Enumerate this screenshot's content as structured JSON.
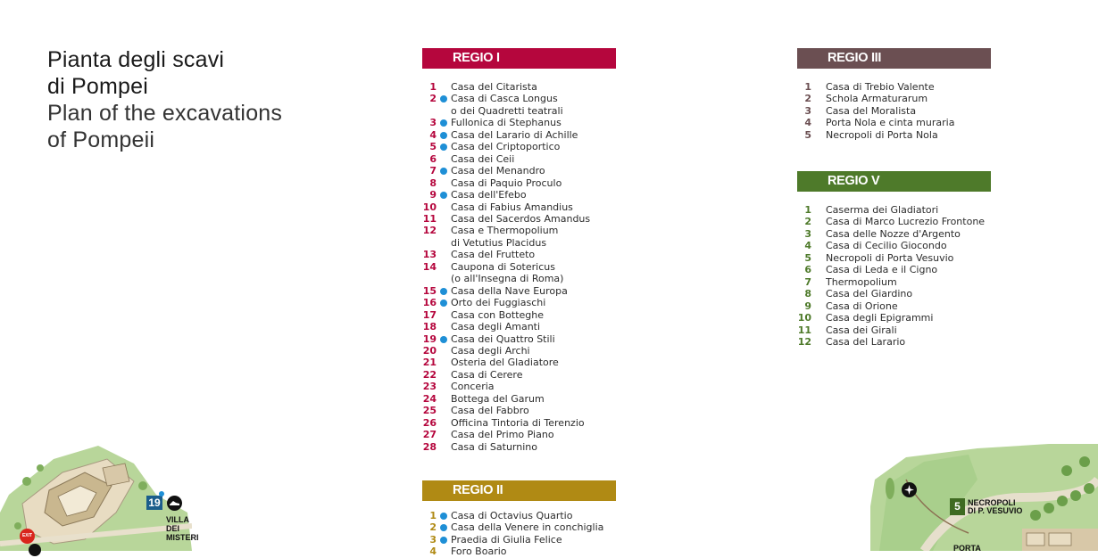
{
  "title": {
    "it_line1": "Pianta degli scavi",
    "it_line2": "di Pompei",
    "en_line1": "Plan of the excavations",
    "en_line2": "of Pompeii"
  },
  "colors": {
    "regio1": "#b5063d",
    "regio2": "#b08a14",
    "regio3": "#6b4f52",
    "regio5": "#4e7a2a",
    "dot": "#1e8fd6"
  },
  "regio1": {
    "title": "REGIO I",
    "items": [
      {
        "num": "1",
        "dot": false,
        "lines": [
          "Casa del Citarista"
        ]
      },
      {
        "num": "2",
        "dot": true,
        "lines": [
          "Casa di Casca Longus",
          "o dei Quadretti teatrali"
        ]
      },
      {
        "num": "3",
        "dot": true,
        "lines": [
          "Fullonica di Stephanus"
        ]
      },
      {
        "num": "4",
        "dot": true,
        "lines": [
          "Casa del Larario di Achille"
        ]
      },
      {
        "num": "5",
        "dot": true,
        "lines": [
          "Casa del Criptoportico"
        ]
      },
      {
        "num": "6",
        "dot": false,
        "lines": [
          "Casa dei Ceii"
        ]
      },
      {
        "num": "7",
        "dot": true,
        "lines": [
          "Casa del Menandro"
        ]
      },
      {
        "num": "8",
        "dot": false,
        "lines": [
          "Casa di Paquio Proculo"
        ]
      },
      {
        "num": "9",
        "dot": true,
        "lines": [
          "Casa dell'Efebo"
        ]
      },
      {
        "num": "10",
        "dot": false,
        "lines": [
          "Casa di Fabius Amandius"
        ]
      },
      {
        "num": "11",
        "dot": false,
        "lines": [
          "Casa del Sacerdos Amandus"
        ]
      },
      {
        "num": "12",
        "dot": false,
        "lines": [
          "Casa e Thermopolium",
          "di Vetutius Placidus"
        ]
      },
      {
        "num": "13",
        "dot": false,
        "lines": [
          "Casa del Frutteto"
        ]
      },
      {
        "num": "14",
        "dot": false,
        "lines": [
          "Caupona di Sotericus",
          "(o all'Insegna di Roma)"
        ]
      },
      {
        "num": "15",
        "dot": true,
        "lines": [
          "Casa della Nave Europa"
        ]
      },
      {
        "num": "16",
        "dot": true,
        "lines": [
          "Orto dei Fuggiaschi"
        ]
      },
      {
        "num": "17",
        "dot": false,
        "lines": [
          "Casa con Botteghe"
        ]
      },
      {
        "num": "18",
        "dot": false,
        "lines": [
          "Casa degli Amanti"
        ]
      },
      {
        "num": "19",
        "dot": true,
        "lines": [
          "Casa dei Quattro Stili"
        ]
      },
      {
        "num": "20",
        "dot": false,
        "lines": [
          "Casa degli Archi"
        ]
      },
      {
        "num": "21",
        "dot": false,
        "lines": [
          "Osteria del Gladiatore"
        ]
      },
      {
        "num": "22",
        "dot": false,
        "lines": [
          "Casa di Cerere"
        ]
      },
      {
        "num": "23",
        "dot": false,
        "lines": [
          "Conceria"
        ]
      },
      {
        "num": "24",
        "dot": false,
        "lines": [
          "Bottega del Garum"
        ]
      },
      {
        "num": "25",
        "dot": false,
        "lines": [
          "Casa del Fabbro"
        ]
      },
      {
        "num": "26",
        "dot": false,
        "lines": [
          "Officina Tintoria di Terenzio"
        ]
      },
      {
        "num": "27",
        "dot": false,
        "lines": [
          "Casa del Primo Piano"
        ]
      },
      {
        "num": "28",
        "dot": false,
        "lines": [
          "Casa di Saturnino"
        ]
      }
    ]
  },
  "regio2": {
    "title": "REGIO II",
    "items": [
      {
        "num": "1",
        "dot": true,
        "lines": [
          "Casa di Octavius Quartio"
        ]
      },
      {
        "num": "2",
        "dot": true,
        "lines": [
          "Casa della Venere in conchiglia"
        ]
      },
      {
        "num": "3",
        "dot": true,
        "lines": [
          "Praedia di Giulia Felice"
        ]
      },
      {
        "num": "4",
        "dot": false,
        "lines": [
          "Foro Boario"
        ]
      }
    ]
  },
  "regio3": {
    "title": "REGIO III",
    "items": [
      {
        "num": "1",
        "dot": false,
        "lines": [
          "Casa di Trebio Valente"
        ]
      },
      {
        "num": "2",
        "dot": false,
        "lines": [
          "Schola Armaturarum"
        ]
      },
      {
        "num": "3",
        "dot": false,
        "lines": [
          "Casa del Moralista"
        ]
      },
      {
        "num": "4",
        "dot": false,
        "lines": [
          "Porta Nola e cinta muraria"
        ]
      },
      {
        "num": "5",
        "dot": false,
        "lines": [
          "Necropoli di Porta Nola"
        ]
      }
    ]
  },
  "regio5": {
    "title": "REGIO V",
    "items": [
      {
        "num": "1",
        "dot": false,
        "lines": [
          "Caserma dei Gladiatori"
        ]
      },
      {
        "num": "2",
        "dot": false,
        "lines": [
          "Casa di Marco Lucrezio Frontone"
        ]
      },
      {
        "num": "3",
        "dot": false,
        "lines": [
          "Casa delle Nozze d'Argento"
        ]
      },
      {
        "num": "4",
        "dot": false,
        "lines": [
          "Casa di Cecilio Giocondo"
        ]
      },
      {
        "num": "5",
        "dot": false,
        "lines": [
          "Necropoli di Porta Vesuvio"
        ]
      },
      {
        "num": "6",
        "dot": false,
        "lines": [
          "Casa di Leda e il Cigno"
        ]
      },
      {
        "num": "7",
        "dot": false,
        "lines": [
          "Thermopolium"
        ]
      },
      {
        "num": "8",
        "dot": false,
        "lines": [
          "Casa del Giardino"
        ]
      },
      {
        "num": "9",
        "dot": false,
        "lines": [
          "Casa di Orione"
        ]
      },
      {
        "num": "10",
        "dot": false,
        "lines": [
          "Casa degli Epigrammi"
        ]
      },
      {
        "num": "11",
        "dot": false,
        "lines": [
          "Casa dei Girali"
        ]
      },
      {
        "num": "12",
        "dot": false,
        "lines": [
          "Casa del Larario"
        ]
      }
    ]
  },
  "map_left": {
    "badge": "19",
    "label": "VILLA DEI MISTERI",
    "exit": "EXIT"
  },
  "map_right": {
    "badge": "5",
    "label_line1": "NECROPOLI",
    "label_line2": "DI P. VESUVIO",
    "label_porta": "PORTA"
  }
}
